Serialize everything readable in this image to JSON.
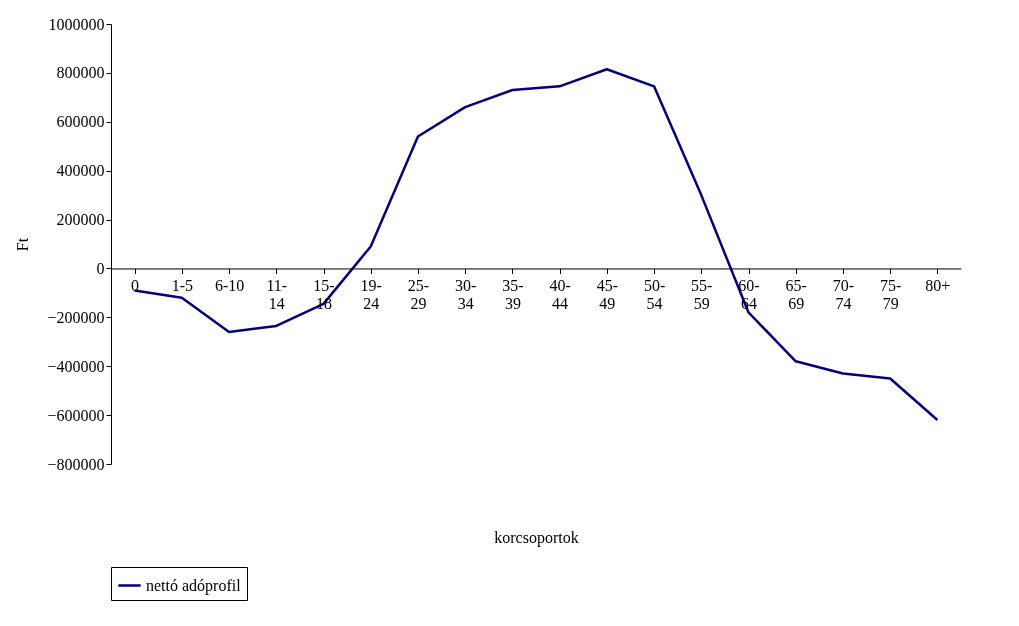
{
  "chart_data": {
    "type": "line",
    "xlabel": "korcsoportok",
    "ylabel": "Ft",
    "categories": [
      "0",
      "1-5",
      "6-10",
      "11-14",
      "15-18",
      "19-24",
      "25-29",
      "30-34",
      "35-39",
      "40-44",
      "45-49",
      "50-54",
      "55-59",
      "60-64",
      "65-69",
      "70-74",
      "75-79",
      "80+"
    ],
    "series": [
      {
        "name": "nettó adóprofil",
        "color": "#000080",
        "values": [
          -90000,
          -120000,
          -260000,
          -235000,
          -145000,
          90000,
          540000,
          660000,
          730000,
          745000,
          815000,
          745000,
          300000,
          -180000,
          -380000,
          -430000,
          -450000,
          -620000
        ]
      }
    ],
    "ylim": [
      -800000,
      1000000
    ],
    "yticks": [
      -800000,
      -600000,
      -400000,
      -200000,
      0,
      200000,
      400000,
      600000,
      800000,
      1000000
    ],
    "grid": false,
    "legend": "bottom",
    "marker": "none",
    "line_style": "solid"
  }
}
